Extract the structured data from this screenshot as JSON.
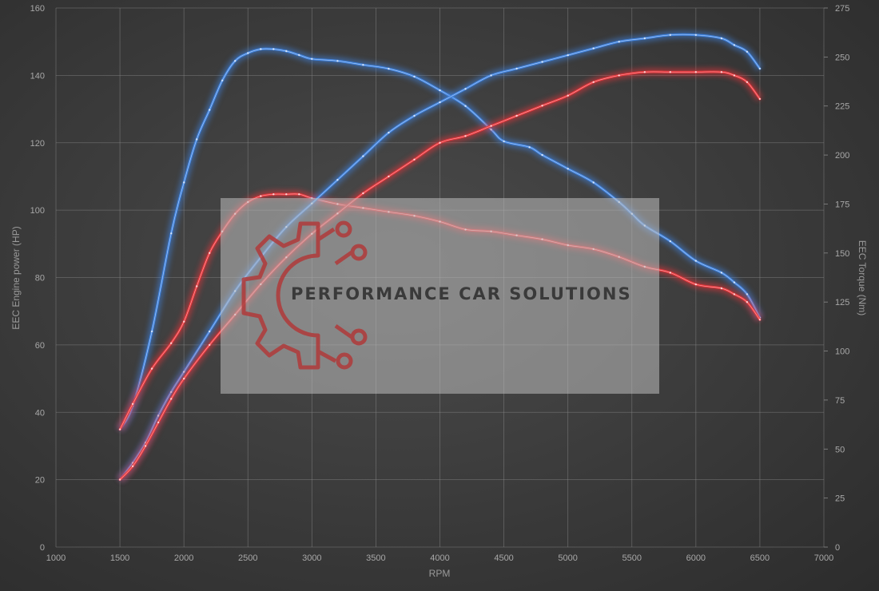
{
  "chart_data": {
    "type": "line",
    "xlabel": "RPM",
    "ylabel_left": "EEC Engine power (HP)",
    "ylabel_right": "EEC Torque (Nm)",
    "xlim": [
      1000,
      7000
    ],
    "ylim_left": [
      0,
      160
    ],
    "ylim_right": [
      0,
      275
    ],
    "x_ticks": [
      "1000",
      "1500",
      "2000",
      "2500",
      "3000",
      "3500",
      "4000",
      "4500",
      "5000",
      "5500",
      "6000",
      "6500",
      "7000"
    ],
    "y_ticks_left": [
      "0",
      "20",
      "40",
      "60",
      "80",
      "100",
      "120",
      "140",
      "160"
    ],
    "y_ticks_right": [
      "0",
      "25",
      "50",
      "75",
      "100",
      "125",
      "150",
      "175",
      "200",
      "225",
      "250",
      "275"
    ],
    "grid": true,
    "series": [
      {
        "color": "#3f83e0",
        "axis": "right",
        "x": [
          1500,
          1600,
          1750,
          1900,
          2000,
          2100,
          2200,
          2300,
          2400,
          2500,
          2600,
          2700,
          2800,
          2900,
          3000,
          3200,
          3400,
          3600,
          3800,
          4000,
          4200,
          4400,
          4500,
          4700,
          4800,
          5000,
          5200,
          5400,
          5500,
          5600,
          5800,
          6000,
          6200,
          6300,
          6400,
          6500
        ],
        "y": [
          60,
          72,
          110,
          160,
          186,
          208,
          223,
          238,
          248,
          252,
          254,
          254,
          253,
          251,
          249,
          248,
          246,
          244,
          240,
          233,
          225,
          213,
          207,
          204,
          200,
          193,
          186,
          176,
          170,
          164,
          156,
          146,
          140,
          135,
          129,
          117
        ]
      },
      {
        "color": "#e8353a",
        "axis": "right",
        "x": [
          1500,
          1600,
          1750,
          1900,
          2000,
          2100,
          2200,
          2300,
          2400,
          2500,
          2600,
          2700,
          2800,
          2900,
          3000,
          3200,
          3400,
          3600,
          3800,
          4000,
          4200,
          4400,
          4600,
          4800,
          5000,
          5200,
          5400,
          5600,
          5800,
          6000,
          6200,
          6300,
          6400,
          6500
        ],
        "y": [
          60,
          73,
          91,
          104,
          115,
          133,
          150,
          161,
          170,
          176,
          179,
          180,
          180,
          180,
          178,
          175,
          173,
          171,
          169,
          166,
          162,
          161,
          159,
          157,
          154,
          152,
          148,
          143,
          140,
          134,
          132,
          129,
          125,
          116
        ]
      },
      {
        "color": "#3f83e0",
        "axis": "left",
        "x": [
          1500,
          1600,
          1700,
          1800,
          1900,
          2000,
          2200,
          2400,
          2600,
          2800,
          3000,
          3200,
          3400,
          3600,
          3800,
          4000,
          4200,
          4400,
          4600,
          4800,
          5000,
          5200,
          5400,
          5600,
          5800,
          6000,
          6200,
          6300,
          6400,
          6500
        ],
        "y": [
          20,
          25,
          31,
          39,
          46,
          52,
          64,
          76,
          86,
          95,
          102,
          109,
          116,
          123,
          128,
          132,
          136,
          140,
          142,
          144,
          146,
          148,
          150,
          151,
          152,
          152,
          151,
          149,
          147,
          142
        ]
      },
      {
        "color": "#e8353a",
        "axis": "left",
        "x": [
          1500,
          1600,
          1700,
          1800,
          1900,
          2000,
          2200,
          2400,
          2600,
          2800,
          3000,
          3200,
          3400,
          3600,
          3800,
          4000,
          4200,
          4400,
          4600,
          4800,
          5000,
          5200,
          5400,
          5600,
          5800,
          6000,
          6200,
          6300,
          6400,
          6500
        ],
        "y": [
          20,
          24,
          30,
          37,
          44,
          50,
          60,
          69,
          78,
          86,
          93,
          99,
          105,
          110,
          115,
          120,
          122,
          125,
          128,
          131,
          134,
          138,
          140,
          141,
          141,
          141,
          141,
          140,
          138,
          133
        ]
      }
    ]
  },
  "watermark": {
    "brand": "PERFORMANCE CAR SOLUTIONS",
    "logo_icon": "gear-circuit-logo-icon",
    "logo_color": "#b03a3a"
  }
}
